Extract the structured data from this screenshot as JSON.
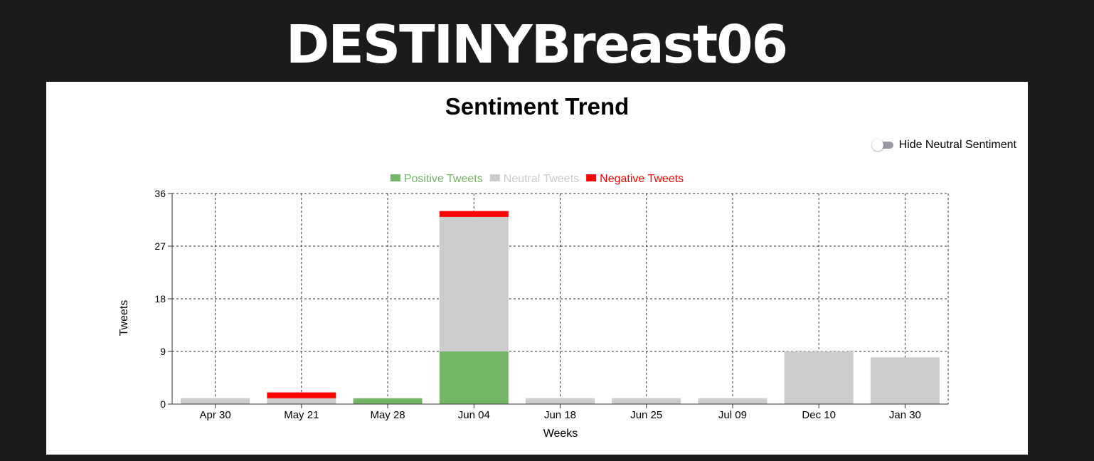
{
  "page": {
    "title": "DESTINYBreast06"
  },
  "toggle": {
    "label": "Hide Neutral Sentiment",
    "checked": false
  },
  "chart_data": {
    "type": "bar",
    "stacked": true,
    "title": "Sentiment Trend",
    "xlabel": "Weeks",
    "ylabel": "Tweets",
    "ylim": [
      0,
      36
    ],
    "yticks": [
      0,
      9,
      18,
      27,
      36
    ],
    "grid": true,
    "legend_position": "top-center",
    "categories": [
      "Apr 30",
      "May 21",
      "May 28",
      "Jun 04",
      "Jun 18",
      "Jun 25",
      "Jul 09",
      "Dec 10",
      "Jan 30"
    ],
    "series": [
      {
        "name": "Positive Tweets",
        "color": "#74b566",
        "values": [
          0,
          0,
          1,
          9,
          0,
          0,
          0,
          0,
          0
        ]
      },
      {
        "name": "Neutral Tweets",
        "color": "#cccccc",
        "values": [
          1,
          1,
          0,
          23,
          1,
          1,
          1,
          9,
          8
        ]
      },
      {
        "name": "Negative Tweets",
        "color": "#ff0000",
        "values": [
          0,
          1,
          0,
          1,
          0,
          0,
          0,
          0,
          0
        ]
      }
    ]
  }
}
